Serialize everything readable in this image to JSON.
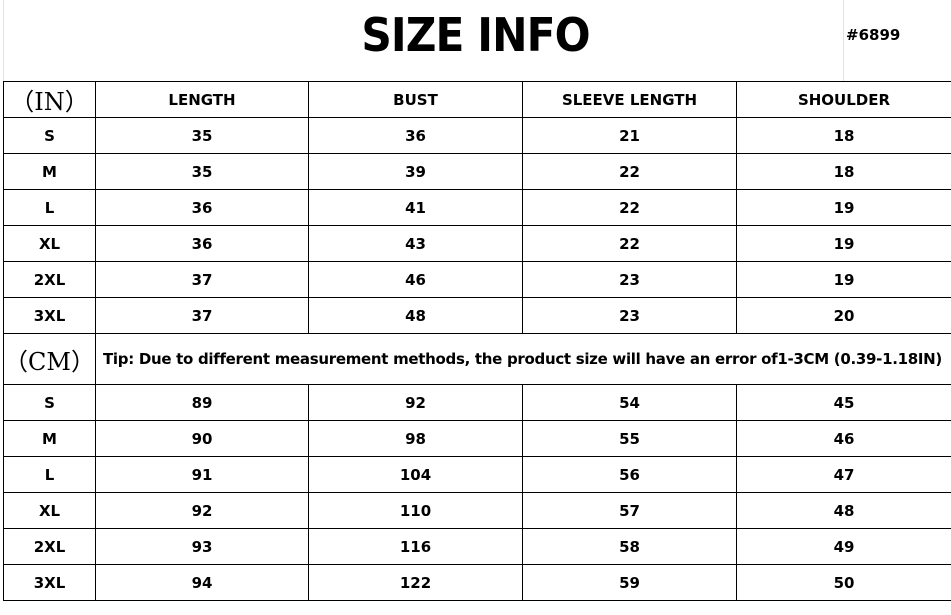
{
  "title": "SIZE INFO",
  "product_code": "#6899",
  "inch_section": {
    "unit_label": "（IN）",
    "headers": [
      "LENGTH",
      "BUST",
      "SLEEVE LENGTH",
      "SHOULDER"
    ],
    "rows": [
      [
        "S",
        "35",
        "36",
        "21",
        "18"
      ],
      [
        "M",
        "35",
        "39",
        "22",
        "18"
      ],
      [
        "L",
        "36",
        "41",
        "22",
        "19"
      ],
      [
        "XL",
        "36",
        "43",
        "22",
        "19"
      ],
      [
        "2XL",
        "37",
        "46",
        "23",
        "19"
      ],
      [
        "3XL",
        "37",
        "48",
        "23",
        "20"
      ]
    ]
  },
  "cm_section": {
    "unit_label": "（CM）",
    "tip": "Tip: Due to different measurement methods, the product size will have an error of1-3CM (0.39-1.18IN)",
    "rows": [
      [
        "S",
        "89",
        "92",
        "54",
        "45"
      ],
      [
        "M",
        "90",
        "98",
        "55",
        "46"
      ],
      [
        "L",
        "91",
        "104",
        "56",
        "47"
      ],
      [
        "XL",
        "92",
        "110",
        "57",
        "48"
      ],
      [
        "2XL",
        "93",
        "116",
        "58",
        "49"
      ],
      [
        "3XL",
        "94",
        "122",
        "59",
        "50"
      ]
    ]
  }
}
